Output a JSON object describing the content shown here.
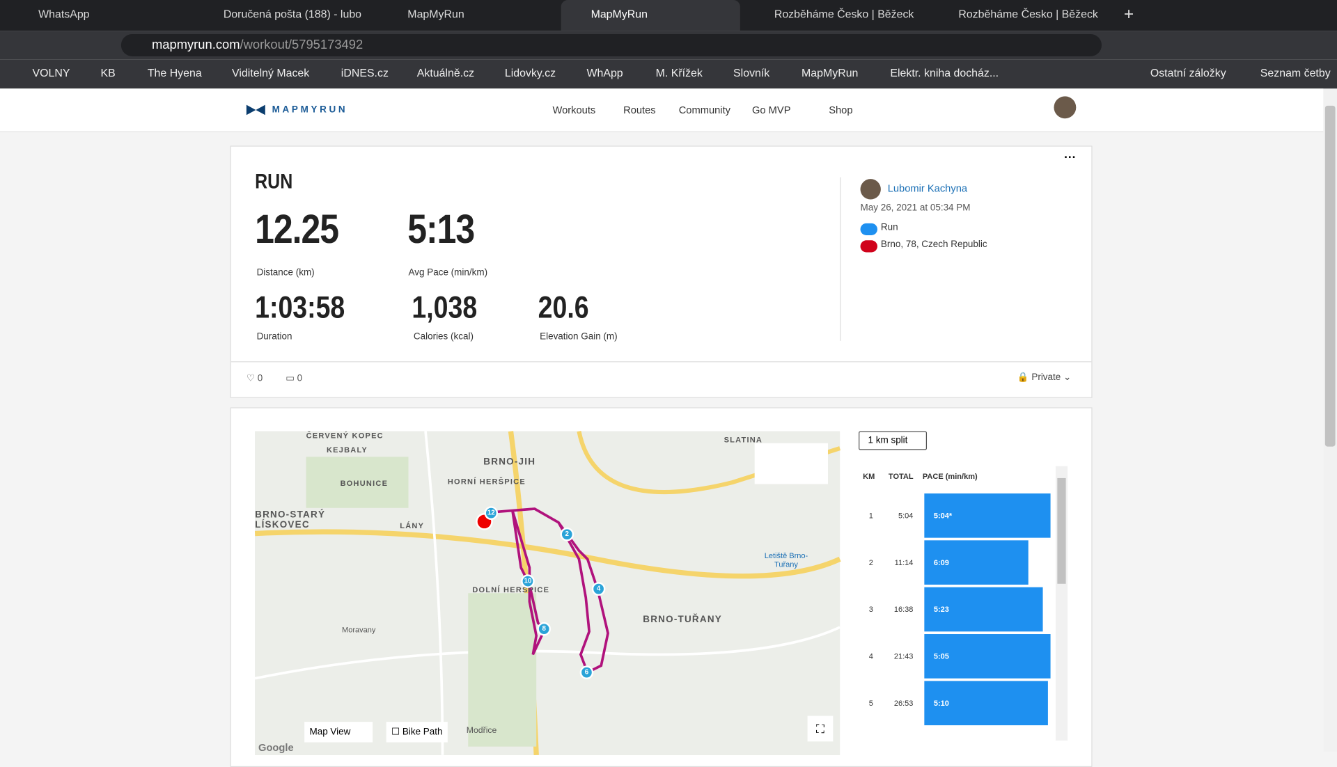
{
  "tabs": [
    "WhatsApp",
    "Doručená pošta (188) - lubo",
    "MapMyRun",
    "MapMyRun",
    "Rozběháme Česko | Běžeck",
    "Rozběháme Česko | Běžeck"
  ],
  "url": {
    "domain": "mapmyrun.com",
    "path": "/workout/5795173492"
  },
  "bookmarks": [
    "VOLNY",
    "KB",
    "The Hyena",
    "Viditelný Macek",
    "iDNES.cz",
    "Aktuálně.cz",
    "Lidovky.cz",
    "WhApp",
    "M. Křížek",
    "Slovník",
    "MapMyRun",
    "Elektr. kniha docház..."
  ],
  "other_bookmarks": [
    "Ostatní záložky",
    "Seznam četby"
  ],
  "header": {
    "logo": "MAPMYRUN",
    "nav": [
      "Workouts",
      "Routes",
      "Community",
      "Go MVP",
      "Shop"
    ]
  },
  "workout": {
    "type": "RUN",
    "stats": [
      {
        "value": "12.25",
        "label": "Distance (km)"
      },
      {
        "value": "5:13",
        "label": "Avg Pace (min/km)"
      },
      {
        "value": "1:03:58",
        "label": "Duration"
      },
      {
        "value": "1,038",
        "label": "Calories (kcal)"
      },
      {
        "value": "20.6",
        "label": "Elevation Gain (m)"
      }
    ],
    "user": "Lubomir Kachyna",
    "date": "May 26, 2021 at 05:34 PM",
    "activity": "Run",
    "location": "Brno, 78, Czech Republic",
    "likes": "0",
    "comments": "0",
    "privacy": "Private"
  },
  "map": {
    "labels": [
      "ČERVENÝ KOPEC",
      "KEJBALY",
      "BRNO-JIH",
      "SLATINA",
      "BOHUNICE",
      "HORNÍ HERŠPICE",
      "BRNO-STARÝ LÍSKOVEC",
      "LÁNY",
      "DOLNÍ HERŠPICE",
      "Letiště Brno-Tuřany",
      "BRNO-TUŘANY",
      "Moravany"
    ],
    "markers": [
      "12",
      "2",
      "10",
      "4",
      "8",
      "6"
    ],
    "controls": [
      "Map View",
      "Bike Path",
      "Modřice",
      "Google"
    ]
  },
  "splits": {
    "select": "1 km split",
    "headers": [
      "KM",
      "TOTAL",
      "PACE (min/km)"
    ],
    "rows": [
      [
        "1",
        "5:04",
        "5:04*"
      ],
      [
        "2",
        "11:14",
        "6:09"
      ],
      [
        "3",
        "16:38",
        "5:23"
      ],
      [
        "4",
        "21:43",
        "5:05"
      ],
      [
        "5",
        "26:53",
        "5:10"
      ]
    ]
  }
}
